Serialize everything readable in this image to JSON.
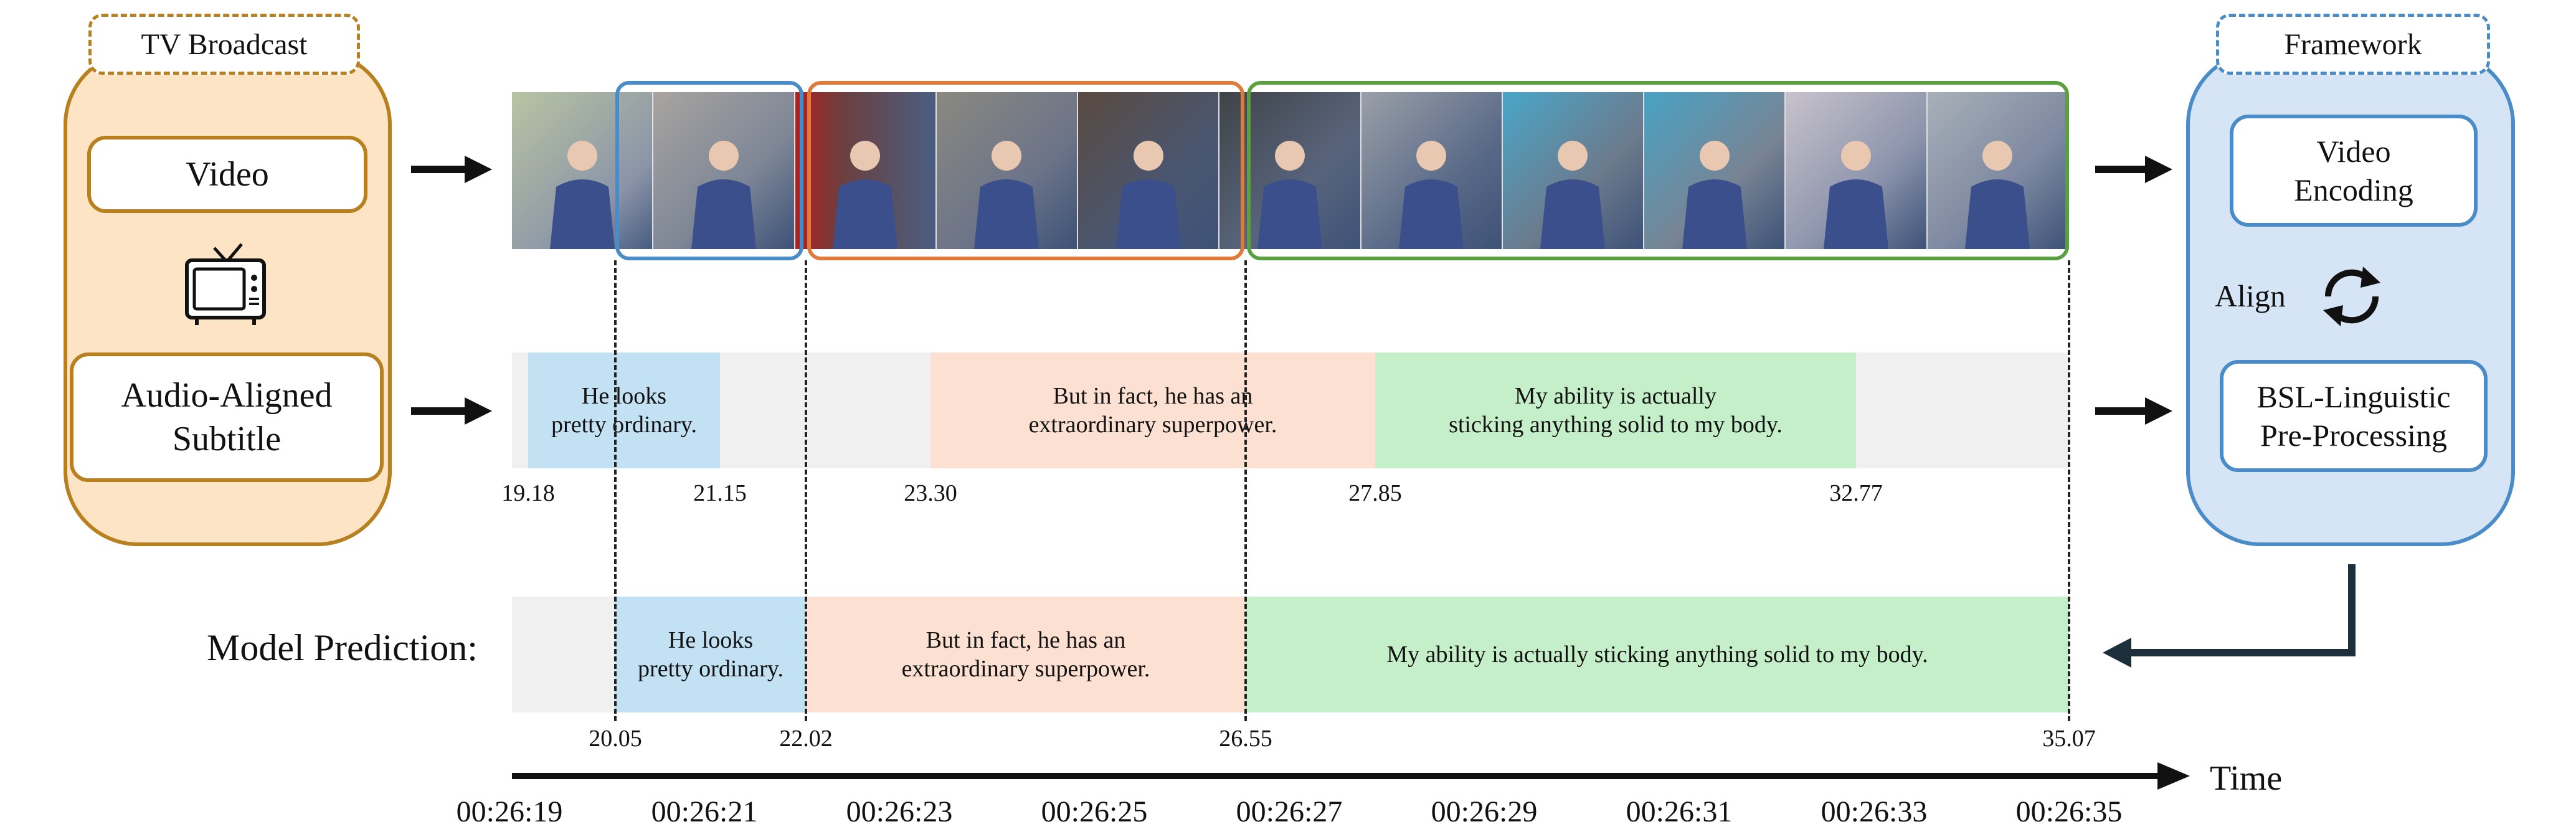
{
  "left_panel": {
    "tag": "TV Broadcast",
    "video_label": "Video",
    "subtitle_label": "Audio-Aligned\nSubtitle",
    "icon": "tv-icon"
  },
  "right_panel": {
    "tag": "Framework",
    "video_encoding_label": "Video\nEncoding",
    "align_label": "Align",
    "bsl_label": "BSL-Linguistic\nPre-Processing",
    "icon": "sync-icon"
  },
  "subtitle_track": {
    "segments": [
      {
        "text": "He looks\npretty ordinary.",
        "color": "#c2e2f4"
      },
      {
        "text": "But in fact, he has an\nextraordinary superpower.",
        "color": "#fce0d2"
      },
      {
        "text": "My ability is actually\nsticking anything solid to my body.",
        "color": "#c5efc8"
      }
    ],
    "timestamps": [
      "19.18",
      "21.15",
      "23.30",
      "27.85",
      "32.77"
    ]
  },
  "prediction_track": {
    "label": "Model Prediction:",
    "segments": [
      {
        "text": "He looks\npretty ordinary.",
        "color": "#c2e2f4"
      },
      {
        "text": "But in fact, he has an\nextraordinary superpower.",
        "color": "#fce0d2"
      },
      {
        "text": "My ability is actually sticking anything solid to my body.",
        "color": "#c5efc8"
      }
    ],
    "timestamps": [
      "20.05",
      "22.02",
      "26.55",
      "35.07"
    ]
  },
  "timeline": {
    "axis_label": "Time",
    "ticks": [
      "00:26:19",
      "00:26:21",
      "00:26:23",
      "00:26:25",
      "00:26:27",
      "00:26:29",
      "00:26:31",
      "00:26:33",
      "00:26:35"
    ]
  },
  "colors": {
    "orange_border": "#b8801e",
    "orange_fill": "#fde4c4",
    "blue_border": "#4a8cc8",
    "blue_fill": "#d6e5f6",
    "segment_box_blue": "#4a8cc8",
    "segment_box_orange": "#e07a3a",
    "segment_box_green": "#5aa040"
  }
}
